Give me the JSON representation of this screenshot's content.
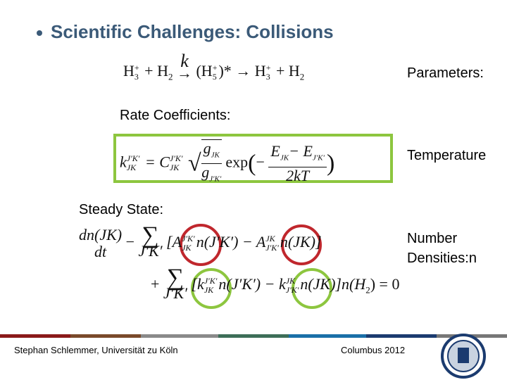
{
  "title": "Scientific Challenges: Collisions",
  "reaction": [
    "H",
    "3",
    "+",
    "+ H",
    "2",
    "k",
    "→",
    "(H",
    "5",
    "+",
    ")*",
    "→ H",
    "3",
    "+",
    "+ H",
    "2"
  ],
  "parameters_label": "Parameters:",
  "rate_label": "Rate Coefficients:",
  "rate_equation": [
    "k",
    "J′K′",
    "JK",
    "= C",
    "J′K′",
    "JK",
    "g",
    "JK",
    "g",
    "J′K′",
    "exp",
    "−",
    "E",
    "JK",
    "− E",
    "J′K′",
    "2kT"
  ],
  "temperature_label": "Temperature",
  "steady_label": "Steady State:",
  "steady_equation": {
    "line1": [
      "dn(JK)",
      "dt",
      "−",
      "∑",
      "J′K′",
      "[A",
      "J′K′",
      "JK",
      "n(J′K′) − A",
      "JK",
      "J′K′",
      "n(JK)]"
    ],
    "line2": [
      "+",
      "∑",
      "J′K′",
      "[k",
      "J′K′",
      "JK",
      "n(J′K′) − k",
      "JK",
      "J′K′",
      "n(JK)]",
      "n(H",
      "2",
      ") = 0"
    ]
  },
  "density_label": [
    "Number",
    "Densities:n"
  ],
  "footer": {
    "left": "Stephan Schlemmer, Universität zu Köln",
    "center": "Columbus 2012"
  }
}
